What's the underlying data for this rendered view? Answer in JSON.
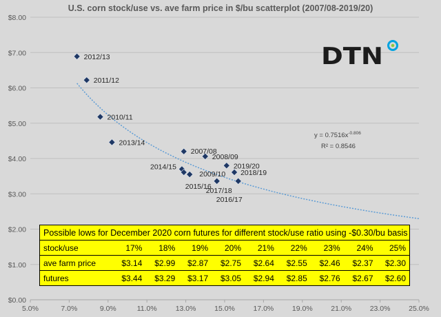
{
  "chart_data": {
    "type": "scatter",
    "title": "U.S. corn stock/use  vs.  ave farm price in $/bu scatterplot (2007/08-2019/20)",
    "xlabel": "",
    "ylabel": "",
    "xlim": [
      0.05,
      0.25
    ],
    "ylim": [
      0,
      8
    ],
    "x_ticks": [
      0.05,
      0.07,
      0.09,
      0.11,
      0.13,
      0.15,
      0.17,
      0.19,
      0.21,
      0.23,
      0.25
    ],
    "x_tick_labels": [
      "5.0%",
      "7.0%",
      "9.0%",
      "11.0%",
      "13.0%",
      "15.0%",
      "17.0%",
      "19.0%",
      "21.0%",
      "23.0%",
      "25.0%"
    ],
    "y_ticks": [
      0,
      1,
      2,
      3,
      4,
      5,
      6,
      7,
      8
    ],
    "y_tick_labels": [
      "$0.00",
      "$1.00",
      "$2.00",
      "$3.00",
      "$4.00",
      "$5.00",
      "$6.00",
      "$7.00",
      "$8.00"
    ],
    "grid": "horizontal",
    "points": [
      {
        "label": "2012/13",
        "x": 0.074,
        "y": 6.89
      },
      {
        "label": "2011/12",
        "x": 0.079,
        "y": 6.22
      },
      {
        "label": "2010/11",
        "x": 0.086,
        "y": 5.18
      },
      {
        "label": "2013/14",
        "x": 0.092,
        "y": 4.46
      },
      {
        "label": "2007/08",
        "x": 0.129,
        "y": 4.2
      },
      {
        "label": "2008/09",
        "x": 0.14,
        "y": 4.06
      },
      {
        "label": "2019/20",
        "x": 0.151,
        "y": 3.8
      },
      {
        "label": "2018/19",
        "x": 0.155,
        "y": 3.61
      },
      {
        "label": "2014/15",
        "x": 0.128,
        "y": 3.7
      },
      {
        "label": "2009/10",
        "x": 0.132,
        "y": 3.55
      },
      {
        "label": "2015/16",
        "x": 0.129,
        "y": 3.61
      },
      {
        "label": "2017/18",
        "x": 0.146,
        "y": 3.36
      },
      {
        "label": "2016/17",
        "x": 0.157,
        "y": 3.36
      }
    ],
    "trendline": {
      "type": "power",
      "coefficient": 0.7516,
      "exponent": -0.806,
      "x_range": [
        0.074,
        0.25
      ],
      "equation_prefix": "y = 0.7516x",
      "equation_exponent": "-0.806",
      "r_squared_text": "R² = 0.8546"
    },
    "colors": {
      "background": "#d9d9d9",
      "marker": "#1f3864",
      "trendline": "#5b9bd5",
      "gridline": "#bfbfbf",
      "table": "#ffff00",
      "logo_ring": "#00a3e0",
      "logo_dot": "#8dc63f"
    }
  },
  "logo": {
    "text": "DTN",
    "icon": "dtn-ring-logo-icon"
  },
  "table": {
    "caption": "Possible lows for December 2020 corn futures for different stock/use ratio using -$0.30/bu basis",
    "rows": [
      {
        "label": "stock/use",
        "values": [
          "17%",
          "18%",
          "19%",
          "20%",
          "21%",
          "22%",
          "23%",
          "24%",
          "25%"
        ]
      },
      {
        "label": "ave farm price",
        "values": [
          "$3.14",
          "$2.99",
          "$2.87",
          "$2.75",
          "$2.64",
          "$2.55",
          "$2.46",
          "$2.37",
          "$2.30"
        ]
      },
      {
        "label": "futures",
        "values": [
          "$3.44",
          "$3.29",
          "$3.17",
          "$3.05",
          "$2.94",
          "$2.85",
          "$2.76",
          "$2.67",
          "$2.60"
        ]
      }
    ]
  }
}
